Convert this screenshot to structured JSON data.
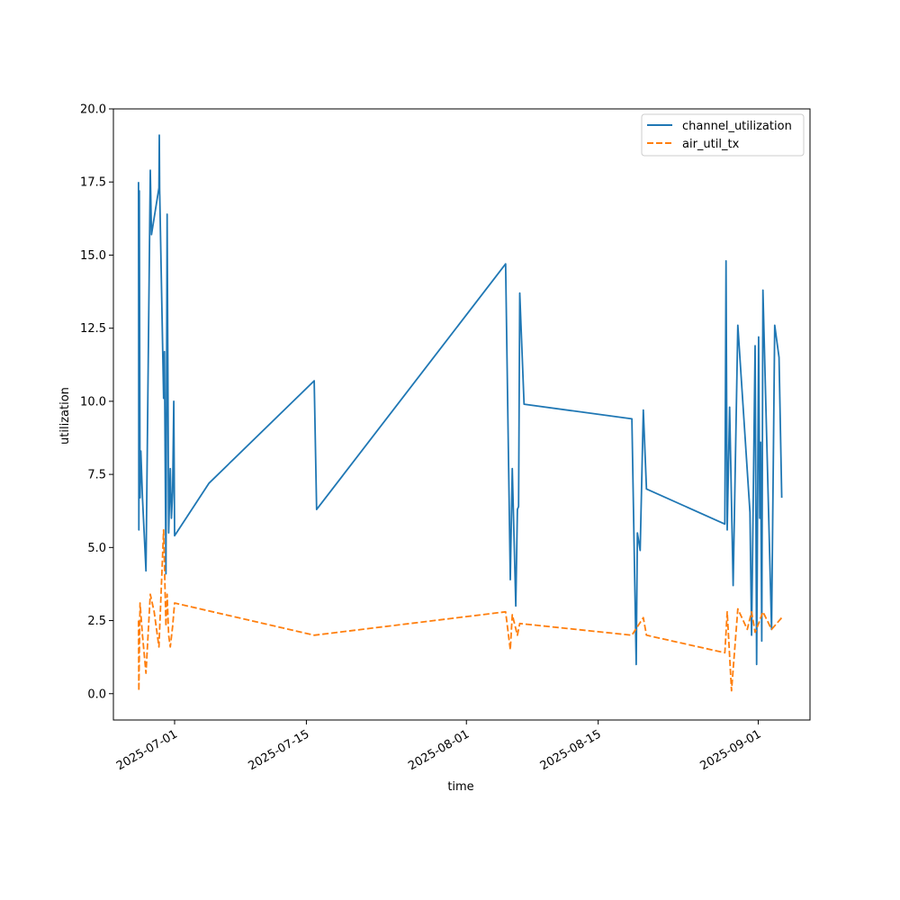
{
  "chart_data": {
    "type": "line",
    "title": "",
    "xlabel": "time",
    "ylabel": "utilization",
    "xlim": [
      "2025-06-24T12:00",
      "2025-09-06T12:00"
    ],
    "ylim": [
      -0.9,
      20.0
    ],
    "yticks": [
      0.0,
      2.5,
      5.0,
      7.5,
      10.0,
      12.5,
      15.0,
      17.5,
      20.0
    ],
    "ytick_labels": [
      "0.0",
      "2.5",
      "5.0",
      "7.5",
      "10.0",
      "12.5",
      "15.0",
      "17.5",
      "20.0"
    ],
    "xticks": [
      "2025-07-01",
      "2025-07-15",
      "2025-08-01",
      "2025-08-15",
      "2025-09-01"
    ],
    "legend_position": "top-right",
    "series": [
      {
        "name": "channel_utilization",
        "color": "#1f77b4",
        "style": "solid",
        "points": [
          [
            "2025-06-27T04:00",
            17.5
          ],
          [
            "2025-06-27T05:00",
            5.6
          ],
          [
            "2025-06-27T06:00",
            17.2
          ],
          [
            "2025-06-27T08:00",
            6.7
          ],
          [
            "2025-06-27T10:00",
            8.3
          ],
          [
            "2025-06-27T14:00",
            6.7
          ],
          [
            "2025-06-27T23:00",
            4.2
          ],
          [
            "2025-06-28T10:00",
            17.9
          ],
          [
            "2025-06-28T13:00",
            15.7
          ],
          [
            "2025-06-29T08:00",
            17.3
          ],
          [
            "2025-06-29T09:00",
            19.1
          ],
          [
            "2025-06-29T10:00",
            17.2
          ],
          [
            "2025-06-29T20:00",
            10.1
          ],
          [
            "2025-06-29T22:00",
            11.7
          ],
          [
            "2025-06-30T02:00",
            4.1
          ],
          [
            "2025-06-30T05:00",
            16.4
          ],
          [
            "2025-06-30T09:00",
            5.5
          ],
          [
            "2025-06-30T13:00",
            7.7
          ],
          [
            "2025-06-30T16:00",
            6.0
          ],
          [
            "2025-06-30T19:00",
            6.9
          ],
          [
            "2025-06-30T22:00",
            10.0
          ],
          [
            "2025-07-01T00:00",
            5.4
          ],
          [
            "2025-07-04T16:00",
            7.2
          ],
          [
            "2025-07-15T20:00",
            10.7
          ],
          [
            "2025-07-16T02:00",
            6.3
          ],
          [
            "2025-08-05T04:00",
            14.7
          ],
          [
            "2025-08-05T16:00",
            3.9
          ],
          [
            "2025-08-05T21:00",
            7.7
          ],
          [
            "2025-08-06T06:00",
            3.0
          ],
          [
            "2025-08-06T10:00",
            6.3
          ],
          [
            "2025-08-06T13:00",
            6.4
          ],
          [
            "2025-08-06T16:00",
            13.7
          ],
          [
            "2025-08-07T03:00",
            9.9
          ],
          [
            "2025-08-18T14:00",
            9.4
          ],
          [
            "2025-08-19T01:00",
            1.0
          ],
          [
            "2025-08-19T04:00",
            5.5
          ],
          [
            "2025-08-19T11:00",
            4.9
          ],
          [
            "2025-08-19T19:00",
            9.7
          ],
          [
            "2025-08-20T03:00",
            7.0
          ],
          [
            "2025-08-28T11:00",
            5.8
          ],
          [
            "2025-08-28T14:00",
            14.8
          ],
          [
            "2025-08-28T17:00",
            5.6
          ],
          [
            "2025-08-28T23:00",
            9.8
          ],
          [
            "2025-08-29T08:00",
            3.7
          ],
          [
            "2025-08-29T20:00",
            12.6
          ],
          [
            "2025-08-31T03:00",
            6.2
          ],
          [
            "2025-08-31T07:00",
            2.0
          ],
          [
            "2025-08-31T16:00",
            11.9
          ],
          [
            "2025-08-31T20:00",
            1.0
          ],
          [
            "2025-09-01T01:00",
            12.2
          ],
          [
            "2025-09-01T04:00",
            6.0
          ],
          [
            "2025-09-01T06:00",
            8.6
          ],
          [
            "2025-09-01T09:00",
            1.8
          ],
          [
            "2025-09-01T12:00",
            13.8
          ],
          [
            "2025-09-02T10:00",
            2.2
          ],
          [
            "2025-09-02T18:00",
            12.6
          ],
          [
            "2025-09-03T05:00",
            11.5
          ],
          [
            "2025-09-03T12:00",
            6.7
          ]
        ]
      },
      {
        "name": "air_util_tx",
        "color": "#ff7f0e",
        "style": "dashed",
        "points": [
          [
            "2025-06-27T04:00",
            2.5
          ],
          [
            "2025-06-27T05:00",
            0.1
          ],
          [
            "2025-06-27T08:00",
            3.1
          ],
          [
            "2025-06-27T14:00",
            2.0
          ],
          [
            "2025-06-27T23:00",
            0.7
          ],
          [
            "2025-06-28T10:00",
            3.4
          ],
          [
            "2025-06-28T20:00",
            2.8
          ],
          [
            "2025-06-29T08:00",
            1.6
          ],
          [
            "2025-06-29T20:00",
            5.6
          ],
          [
            "2025-06-30T02:00",
            2.3
          ],
          [
            "2025-06-30T05:00",
            3.4
          ],
          [
            "2025-06-30T09:00",
            2.0
          ],
          [
            "2025-06-30T13:00",
            1.6
          ],
          [
            "2025-06-30T19:00",
            2.3
          ],
          [
            "2025-07-01T00:00",
            3.1
          ],
          [
            "2025-07-15T20:00",
            2.0
          ],
          [
            "2025-08-05T04:00",
            2.8
          ],
          [
            "2025-08-05T16:00",
            1.5
          ],
          [
            "2025-08-05T21:00",
            2.7
          ],
          [
            "2025-08-06T10:00",
            2.0
          ],
          [
            "2025-08-06T16:00",
            2.4
          ],
          [
            "2025-08-18T14:00",
            2.0
          ],
          [
            "2025-08-19T19:00",
            2.6
          ],
          [
            "2025-08-20T03:00",
            2.0
          ],
          [
            "2025-08-28T11:00",
            1.4
          ],
          [
            "2025-08-28T17:00",
            2.8
          ],
          [
            "2025-08-29T04:00",
            0.1
          ],
          [
            "2025-08-29T20:00",
            2.9
          ],
          [
            "2025-08-30T20:00",
            2.2
          ],
          [
            "2025-08-31T07:00",
            2.8
          ],
          [
            "2025-08-31T16:00",
            2.1
          ],
          [
            "2025-09-01T01:00",
            2.4
          ],
          [
            "2025-09-01T12:00",
            2.8
          ],
          [
            "2025-09-02T10:00",
            2.2
          ],
          [
            "2025-09-03T12:00",
            2.6
          ]
        ]
      }
    ]
  }
}
